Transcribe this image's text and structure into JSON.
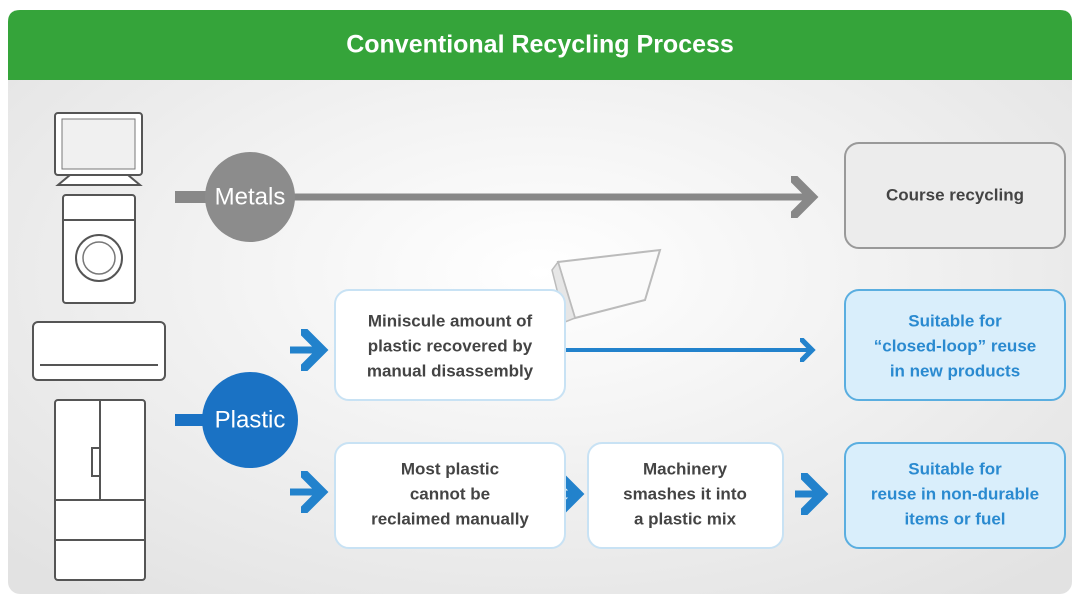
{
  "header": {
    "title": "Conventional Recycling Process"
  },
  "materials": {
    "metals": "Metals",
    "plastic": "Plastic"
  },
  "boxes": {
    "course_recycling": [
      "Course recycling"
    ],
    "manual_recovery": [
      "Miniscule amount of",
      "plastic recovered by",
      "manual disassembly"
    ],
    "closed_loop": [
      "Suitable for",
      "“closed-loop” reuse",
      "in new products"
    ],
    "not_reclaimed": [
      "Most plastic",
      "cannot be",
      "reclaimed manually"
    ],
    "machinery": [
      "Machinery",
      "smashes it into",
      "a plastic mix"
    ],
    "non_durable": [
      "Suitable for",
      "reuse in non-durable",
      "items or fuel"
    ]
  }
}
